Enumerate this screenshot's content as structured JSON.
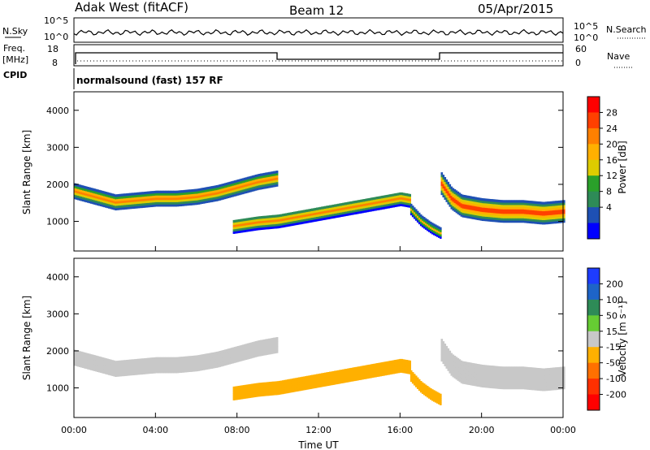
{
  "header": {
    "radar": "Adak West (fitACF)",
    "beam": "Beam 12",
    "date": "05/Apr/2015"
  },
  "noise_panel": {
    "left_label": "N.Sky",
    "left_ticks": [
      "10^5",
      "10^0"
    ],
    "right_label": "N.Search",
    "right_ticks": [
      "10^5",
      "10^0"
    ]
  },
  "freq_panel": {
    "left_label_1": "Freq.",
    "left_label_2": "[MHz]",
    "left_ticks": [
      "18",
      "8"
    ],
    "right_label": "Nave",
    "right_ticks": [
      "60",
      "0"
    ],
    "cpid_label": "CPID",
    "cpid_text": "normalsound (fast) 157 RF"
  },
  "colorbars": {
    "power": {
      "label": "Power [dB]",
      "ticks": [
        "28",
        "24",
        "20",
        "16",
        "12",
        "8",
        "4"
      ],
      "colors": [
        "#ff0000",
        "#ff4000",
        "#ff8000",
        "#ffb000",
        "#ddcc00",
        "#2aa02a",
        "#2e8b57",
        "#1e50b4",
        "#0000ff"
      ]
    },
    "velocity": {
      "label": "Velocity [m s⁻¹]",
      "ticks": [
        "200",
        "100",
        "50",
        "15",
        "-15",
        "-50",
        "-100",
        "-200"
      ],
      "colors": [
        "#1e3cff",
        "#1e64c8",
        "#2e8b57",
        "#66cc33",
        "#c8c8c8",
        "#ffb000",
        "#ff7000",
        "#ff3000",
        "#ff0000"
      ]
    }
  },
  "chart_data": [
    {
      "type": "heatmap",
      "title": "Power",
      "ylabel": "Slant Range [km]",
      "xlabel": "Time UT",
      "xlim_hours": [
        0,
        24
      ],
      "ylim": [
        200,
        4500
      ],
      "yticks": [
        1000,
        2000,
        3000,
        4000
      ],
      "x_tick_labels": [
        "00:00",
        "04:00",
        "08:00",
        "12:00",
        "16:00",
        "20:00",
        "00:00"
      ],
      "bands": [
        {
          "t": [
            0,
            1,
            2,
            3,
            4,
            5,
            6,
            7,
            8,
            9,
            10
          ],
          "center": [
            1800,
            1650,
            1500,
            1550,
            1600,
            1600,
            1650,
            1750,
            1900,
            2050,
            2150
          ],
          "width": 380,
          "peak_db": 24
        },
        {
          "t": [
            7.8,
            9,
            10,
            11,
            12,
            13,
            14,
            15,
            16,
            16.5
          ],
          "center": [
            850,
            950,
            1000,
            1100,
            1200,
            1300,
            1400,
            1500,
            1600,
            1550
          ],
          "width": 350,
          "peak_db": 22
        },
        {
          "t": [
            16.5,
            17,
            17.5,
            18
          ],
          "center": [
            1300,
            1000,
            800,
            650
          ],
          "width": 250,
          "peak_db": 20
        },
        {
          "t": [
            18,
            18.5,
            19,
            20,
            21,
            22,
            23,
            24
          ],
          "center": [
            2000,
            1600,
            1400,
            1300,
            1250,
            1250,
            1200,
            1250
          ],
          "width": 550,
          "peak_db": 28
        }
      ]
    },
    {
      "type": "heatmap",
      "title": "Velocity",
      "ylabel": "Slant Range [km]",
      "xlabel": "Time UT",
      "xlim_hours": [
        0,
        24
      ],
      "ylim": [
        200,
        4500
      ],
      "yticks": [
        1000,
        2000,
        3000,
        4000
      ],
      "x_tick_labels": [
        "00:00",
        "04:00",
        "08:00",
        "12:00",
        "16:00",
        "20:00",
        "00:00"
      ],
      "bands": [
        {
          "t": [
            0,
            1,
            2,
            3,
            4,
            5,
            6,
            7,
            8,
            9,
            10
          ],
          "center": [
            1800,
            1650,
            1500,
            1550,
            1600,
            1600,
            1650,
            1750,
            1900,
            2050,
            2150
          ],
          "width": 380,
          "velocity": 0
        },
        {
          "t": [
            7.8,
            9,
            10,
            11,
            12,
            13,
            14,
            15,
            16,
            16.5
          ],
          "center": [
            850,
            950,
            1000,
            1100,
            1200,
            1300,
            1400,
            1500,
            1600,
            1550
          ],
          "width": 350,
          "velocity": -50
        },
        {
          "t": [
            16.5,
            17,
            17.5,
            18
          ],
          "center": [
            1300,
            1000,
            800,
            650
          ],
          "width": 250,
          "velocity": -50
        },
        {
          "t": [
            18,
            18.5,
            19,
            20,
            21,
            22,
            23,
            24
          ],
          "center": [
            2000,
            1600,
            1400,
            1300,
            1250,
            1250,
            1200,
            1250
          ],
          "width": 550,
          "velocity": 0
        }
      ]
    }
  ]
}
